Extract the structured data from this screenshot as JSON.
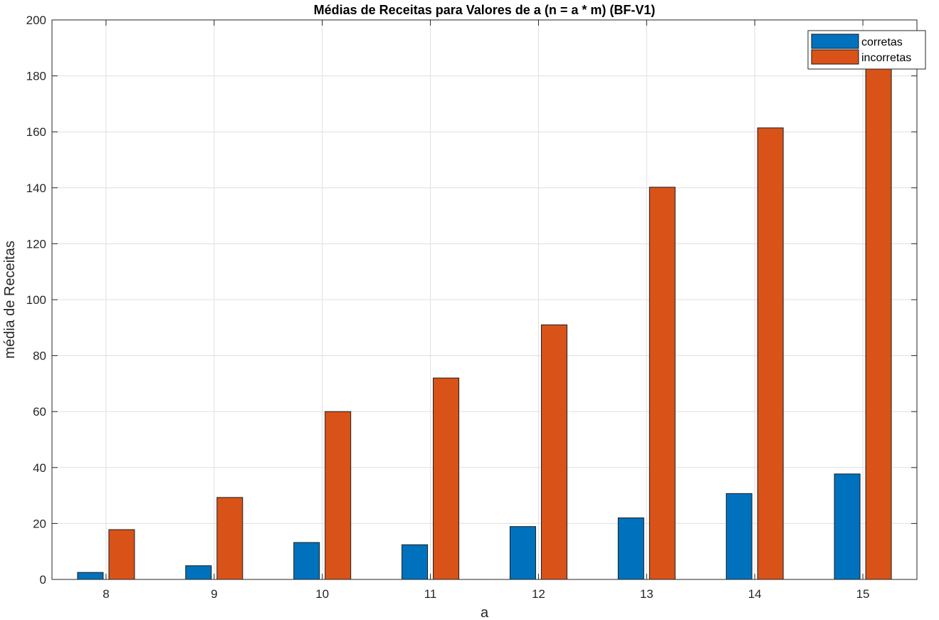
{
  "chart_data": {
    "type": "bar",
    "title": "Médias de Receitas para Valores de a (n = a * m) (BF-V1)",
    "xlabel": "a",
    "ylabel": "média de Receitas",
    "categories": [
      "8",
      "9",
      "10",
      "11",
      "12",
      "13",
      "14",
      "15"
    ],
    "ylim": [
      0,
      200
    ],
    "yticks": [
      0,
      20,
      40,
      60,
      80,
      100,
      120,
      140,
      160,
      180,
      200
    ],
    "grid": true,
    "legend_position": "top-right",
    "series": [
      {
        "name": "corretas",
        "color": "#0072BD",
        "values": [
          2.5,
          4.9,
          13.2,
          12.4,
          18.9,
          22.0,
          30.7,
          37.7
        ]
      },
      {
        "name": "incorretas",
        "color": "#D95319",
        "values": [
          17.8,
          29.3,
          60.0,
          72.0,
          91.0,
          140.2,
          161.4,
          185.0
        ]
      }
    ]
  }
}
